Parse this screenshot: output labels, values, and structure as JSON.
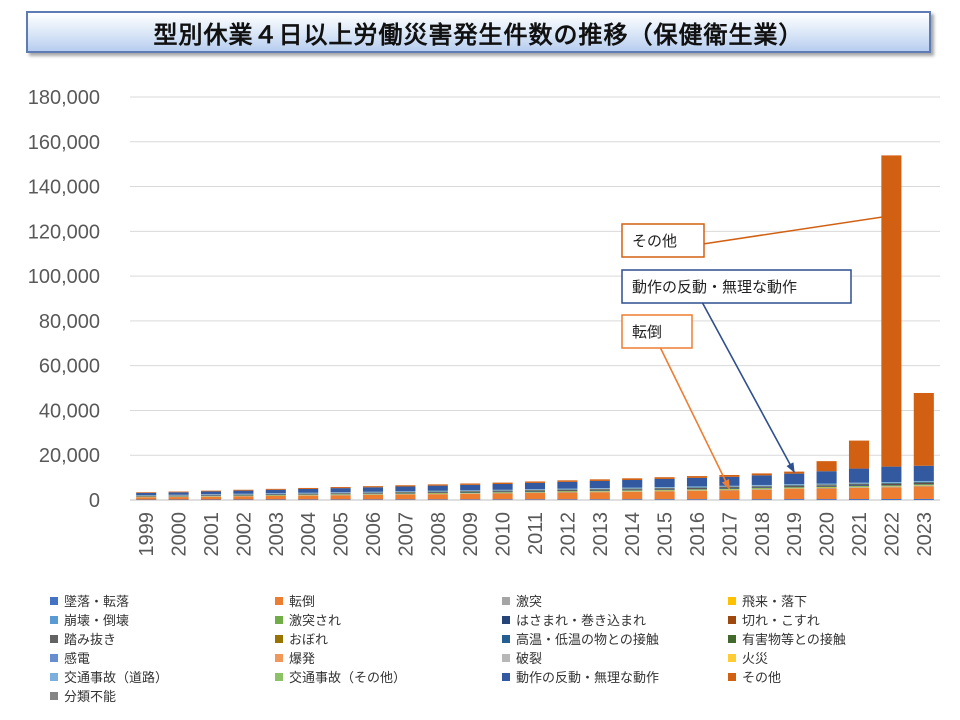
{
  "title": "型別休業４日以上労働災害発生件数の推移（保健衛生業）",
  "chart_data": {
    "type": "bar",
    "stacked": true,
    "title": "型別休業４日以上労働災害発生件数の推移（保健衛生業）",
    "xlabel": "",
    "ylabel": "",
    "ylim": [
      0,
      180000
    ],
    "y_ticks": [
      "0",
      "20,000",
      "40,000",
      "60,000",
      "80,000",
      "100,000",
      "120,000",
      "140,000",
      "160,000",
      "180,000"
    ],
    "grid": true,
    "legend_position": "bottom",
    "categories": [
      "1999",
      "2000",
      "2001",
      "2002",
      "2003",
      "2004",
      "2005",
      "2006",
      "2007",
      "2008",
      "2009",
      "2010",
      "2011",
      "2012",
      "2013",
      "2014",
      "2015",
      "2016",
      "2017",
      "2018",
      "2019",
      "2020",
      "2021",
      "2022",
      "2023"
    ],
    "series": [
      {
        "name": "墜落・転落",
        "color": "#4472c4",
        "values": [
          200,
          210,
          220,
          230,
          240,
          250,
          260,
          270,
          280,
          290,
          300,
          310,
          320,
          330,
          340,
          350,
          360,
          370,
          380,
          390,
          400,
          410,
          430,
          450,
          470
        ]
      },
      {
        "name": "転倒",
        "color": "#ed7d31",
        "values": [
          1000,
          1100,
          1250,
          1400,
          1550,
          1700,
          1850,
          2000,
          2150,
          2300,
          2450,
          2600,
          2800,
          3000,
          3150,
          3300,
          3500,
          3700,
          3900,
          4200,
          4500,
          4700,
          5000,
          5200,
          5600
        ]
      },
      {
        "name": "激突",
        "color": "#a5a5a5",
        "values": [
          100,
          110,
          120,
          130,
          140,
          150,
          160,
          170,
          180,
          190,
          200,
          210,
          220,
          230,
          240,
          250,
          260,
          270,
          280,
          290,
          300,
          310,
          320,
          330,
          340
        ]
      },
      {
        "name": "飛来・落下",
        "color": "#ffc000",
        "values": [
          60,
          65,
          70,
          75,
          80,
          85,
          90,
          95,
          100,
          105,
          110,
          115,
          120,
          125,
          130,
          135,
          140,
          145,
          150,
          155,
          160,
          165,
          170,
          175,
          180
        ]
      },
      {
        "name": "崩壊・倒壊",
        "color": "#5b9bd5",
        "values": [
          20,
          20,
          20,
          20,
          20,
          20,
          20,
          20,
          20,
          20,
          20,
          20,
          20,
          20,
          20,
          20,
          20,
          20,
          20,
          20,
          20,
          20,
          20,
          20,
          20
        ]
      },
      {
        "name": "激突され",
        "color": "#70ad47",
        "values": [
          150,
          160,
          170,
          180,
          190,
          200,
          210,
          220,
          230,
          240,
          250,
          260,
          270,
          280,
          290,
          300,
          310,
          320,
          330,
          340,
          350,
          360,
          370,
          380,
          390
        ]
      },
      {
        "name": "はさまれ・巻き込まれ",
        "color": "#264478",
        "values": [
          150,
          160,
          170,
          180,
          190,
          200,
          210,
          220,
          230,
          240,
          250,
          260,
          270,
          280,
          290,
          300,
          310,
          320,
          330,
          340,
          350,
          360,
          370,
          380,
          390
        ]
      },
      {
        "name": "切れ・こすれ",
        "color": "#9e480e",
        "values": [
          100,
          105,
          110,
          115,
          120,
          125,
          130,
          135,
          140,
          145,
          150,
          155,
          160,
          165,
          170,
          175,
          180,
          185,
          190,
          195,
          200,
          205,
          210,
          215,
          220
        ]
      },
      {
        "name": "踏み抜き",
        "color": "#636363",
        "values": [
          5,
          5,
          5,
          5,
          5,
          5,
          5,
          5,
          5,
          5,
          5,
          5,
          5,
          5,
          5,
          5,
          5,
          5,
          5,
          5,
          5,
          5,
          5,
          5,
          5
        ]
      },
      {
        "name": "おぼれ",
        "color": "#997300",
        "values": [
          5,
          5,
          5,
          5,
          5,
          5,
          5,
          5,
          5,
          5,
          5,
          5,
          5,
          5,
          5,
          5,
          5,
          5,
          5,
          5,
          5,
          5,
          5,
          5,
          5
        ]
      },
      {
        "name": "高温・低温の物との接触",
        "color": "#255e91",
        "values": [
          120,
          125,
          130,
          135,
          140,
          145,
          150,
          155,
          160,
          165,
          170,
          175,
          180,
          185,
          190,
          195,
          200,
          205,
          210,
          215,
          220,
          225,
          230,
          235,
          240
        ]
      },
      {
        "name": "有害物等との接触",
        "color": "#43682b",
        "values": [
          50,
          55,
          60,
          65,
          70,
          75,
          80,
          85,
          90,
          95,
          100,
          105,
          110,
          115,
          120,
          125,
          130,
          135,
          140,
          145,
          150,
          155,
          160,
          165,
          170
        ]
      },
      {
        "name": "感電",
        "color": "#698ed0",
        "values": [
          5,
          5,
          5,
          5,
          5,
          5,
          5,
          5,
          5,
          5,
          5,
          5,
          5,
          5,
          5,
          5,
          5,
          5,
          5,
          5,
          5,
          5,
          5,
          5,
          5
        ]
      },
      {
        "name": "爆発",
        "color": "#f1975a",
        "values": [
          5,
          5,
          5,
          5,
          5,
          5,
          5,
          5,
          5,
          5,
          5,
          5,
          5,
          5,
          5,
          5,
          5,
          5,
          5,
          5,
          5,
          5,
          5,
          5,
          5
        ]
      },
      {
        "name": "破裂",
        "color": "#b7b7b7",
        "values": [
          5,
          5,
          5,
          5,
          5,
          5,
          5,
          5,
          5,
          5,
          5,
          5,
          5,
          5,
          5,
          5,
          5,
          5,
          5,
          5,
          5,
          5,
          5,
          5,
          5
        ]
      },
      {
        "name": "火災",
        "color": "#ffcd33",
        "values": [
          5,
          5,
          5,
          5,
          5,
          5,
          5,
          5,
          5,
          5,
          5,
          5,
          5,
          5,
          5,
          5,
          5,
          5,
          5,
          5,
          5,
          5,
          5,
          5,
          5
        ]
      },
      {
        "name": "交通事故（道路）",
        "color": "#7cafdd",
        "values": [
          200,
          210,
          220,
          230,
          240,
          250,
          260,
          270,
          280,
          290,
          300,
          310,
          320,
          330,
          340,
          350,
          360,
          370,
          380,
          390,
          400,
          410,
          420,
          430,
          440
        ]
      },
      {
        "name": "交通事故（その他）",
        "color": "#8cc168",
        "values": [
          5,
          5,
          5,
          5,
          5,
          5,
          5,
          5,
          5,
          5,
          5,
          5,
          5,
          5,
          5,
          5,
          5,
          5,
          5,
          5,
          5,
          5,
          5,
          5,
          5
        ]
      },
      {
        "name": "動作の反動・無理な動作",
        "color": "#335aa1",
        "values": [
          1000,
          1100,
          1250,
          1400,
          1550,
          1700,
          1850,
          2000,
          2150,
          2300,
          2450,
          2600,
          2800,
          3000,
          3200,
          3400,
          3600,
          3800,
          4000,
          4300,
          4700,
          5500,
          6300,
          6900,
          6800
        ]
      },
      {
        "name": "その他",
        "color": "#d26012",
        "values": [
          300,
          320,
          350,
          380,
          410,
          440,
          470,
          500,
          530,
          560,
          590,
          620,
          650,
          680,
          710,
          740,
          770,
          800,
          830,
          860,
          900,
          4500,
          12500,
          139000,
          32500
        ]
      },
      {
        "name": "分類不能",
        "color": "#848484",
        "values": [
          5,
          5,
          5,
          5,
          5,
          5,
          5,
          5,
          5,
          5,
          5,
          5,
          5,
          5,
          5,
          5,
          5,
          5,
          5,
          5,
          5,
          5,
          5,
          5,
          5
        ]
      }
    ],
    "annotations": [
      {
        "text": "その他",
        "target_category": "2022",
        "target_value": 127000,
        "color": "#d26012"
      },
      {
        "text": "動作の反動・無理な動作",
        "target_category": "2019",
        "target_value": 12500,
        "color": "#2f4f8f"
      },
      {
        "text": "転倒",
        "target_category": "2017",
        "target_value": 5000,
        "color": "#ed7d31"
      }
    ]
  }
}
